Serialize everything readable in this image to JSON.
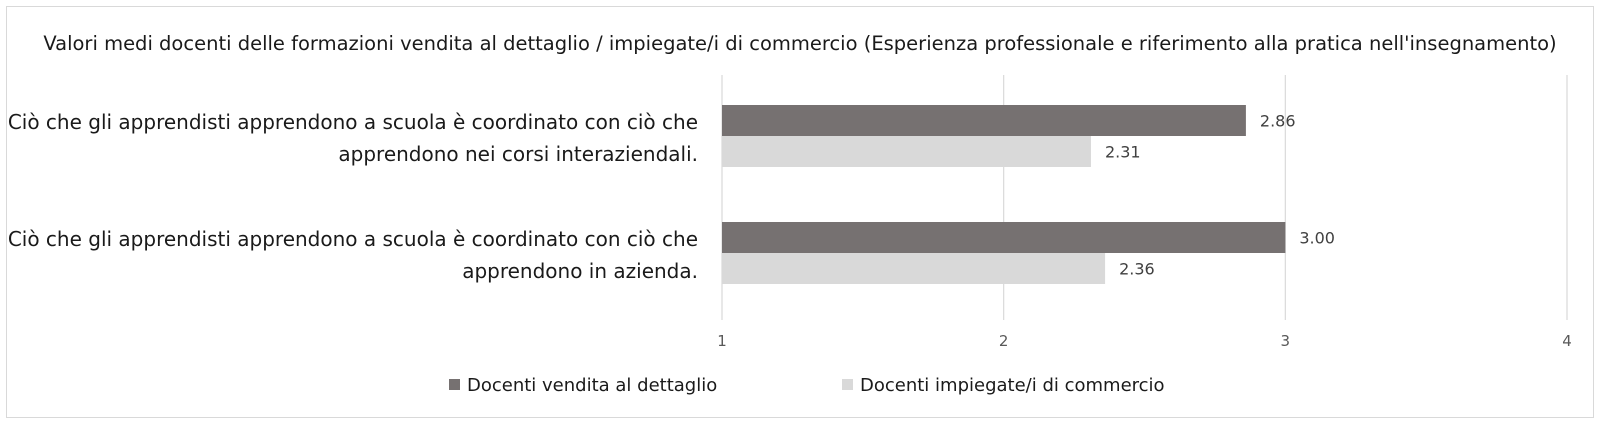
{
  "chart_data": {
    "type": "bar",
    "orientation": "horizontal",
    "title": "Valori medi docenti delle formazioni vendita al dettaglio / impiegate/i di commercio (Esperienza professionale e riferimento alla pratica nell'insegnamento)",
    "categories": [
      [
        "Ciò che gli apprendisti apprendono a scuola è coordinato con ciò che",
        "apprendono nei corsi interaziendali."
      ],
      [
        "Ciò che gli apprendisti apprendono a scuola è coordinato con ciò che",
        "apprendono in azienda."
      ]
    ],
    "series": [
      {
        "name": "Docenti vendita al dettaglio",
        "color": "#767171",
        "values": [
          2.86,
          3.0
        ],
        "labels": [
          "2.86",
          "3.00"
        ]
      },
      {
        "name": "Docenti impiegate/i di commercio",
        "color": "#d9d9d9",
        "values": [
          2.31,
          2.36
        ],
        "labels": [
          "2.31",
          "2.36"
        ]
      }
    ],
    "xlim": [
      1,
      4
    ],
    "xticks": [
      1,
      2,
      3,
      4
    ],
    "xtick_labels": [
      "1",
      "2",
      "3",
      "4"
    ],
    "grid": true,
    "legend_position": "bottom"
  }
}
